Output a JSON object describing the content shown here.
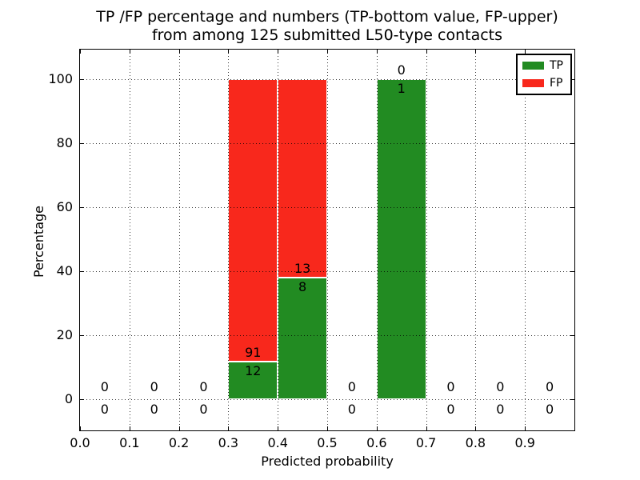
{
  "chart_data": {
    "type": "bar",
    "subtype": "stacked-percentage-histogram",
    "title_line1": "TP /FP percentage and numbers (TP-bottom value, FP-upper)",
    "title_line2": "from among 125 submitted L50-type contacts",
    "xlabel": "Predicted probability",
    "ylabel": "Percentage",
    "total_contacts": 125,
    "xlim": [
      0.0,
      1.0
    ],
    "ylim": [
      -10,
      110
    ],
    "grid": true,
    "legend_position": "upper right",
    "colors": {
      "tp": "#228b22",
      "fp": "#f8281c",
      "grid": "#000000",
      "text": "#000000"
    },
    "legend": [
      {
        "label": "TP",
        "color": "#228b22"
      },
      {
        "label": "FP",
        "color": "#f8281c"
      }
    ],
    "xticks": [
      {
        "value": 0.0,
        "label": "0.0"
      },
      {
        "value": 0.1,
        "label": "0.1"
      },
      {
        "value": 0.2,
        "label": "0.2"
      },
      {
        "value": 0.3,
        "label": "0.3"
      },
      {
        "value": 0.4,
        "label": "0.4"
      },
      {
        "value": 0.5,
        "label": "0.5"
      },
      {
        "value": 0.6,
        "label": "0.6"
      },
      {
        "value": 0.7,
        "label": "0.7"
      },
      {
        "value": 0.8,
        "label": "0.8"
      },
      {
        "value": 0.9,
        "label": "0.9"
      }
    ],
    "yticks": [
      {
        "value": 0,
        "label": "0"
      },
      {
        "value": 20,
        "label": "20"
      },
      {
        "value": 40,
        "label": "40"
      },
      {
        "value": 60,
        "label": "60"
      },
      {
        "value": 80,
        "label": "80"
      },
      {
        "value": 100,
        "label": "100"
      }
    ],
    "xgrid": [
      0.1,
      0.2,
      0.3,
      0.4,
      0.5,
      0.6,
      0.7,
      0.8,
      0.9
    ],
    "bins": [
      {
        "range": [
          0.0,
          0.1
        ],
        "tp": 0,
        "fp": 0
      },
      {
        "range": [
          0.1,
          0.2
        ],
        "tp": 0,
        "fp": 0
      },
      {
        "range": [
          0.2,
          0.3
        ],
        "tp": 0,
        "fp": 0
      },
      {
        "range": [
          0.3,
          0.4
        ],
        "tp": 12,
        "fp": 91
      },
      {
        "range": [
          0.4,
          0.5
        ],
        "tp": 8,
        "fp": 13
      },
      {
        "range": [
          0.5,
          0.6
        ],
        "tp": 0,
        "fp": 0
      },
      {
        "range": [
          0.6,
          0.7
        ],
        "tp": 1,
        "fp": 0
      },
      {
        "range": [
          0.7,
          0.8
        ],
        "tp": 0,
        "fp": 0
      },
      {
        "range": [
          0.8,
          0.9
        ],
        "tp": 0,
        "fp": 0
      },
      {
        "range": [
          0.9,
          1.0
        ],
        "tp": 0,
        "fp": 0
      }
    ]
  }
}
